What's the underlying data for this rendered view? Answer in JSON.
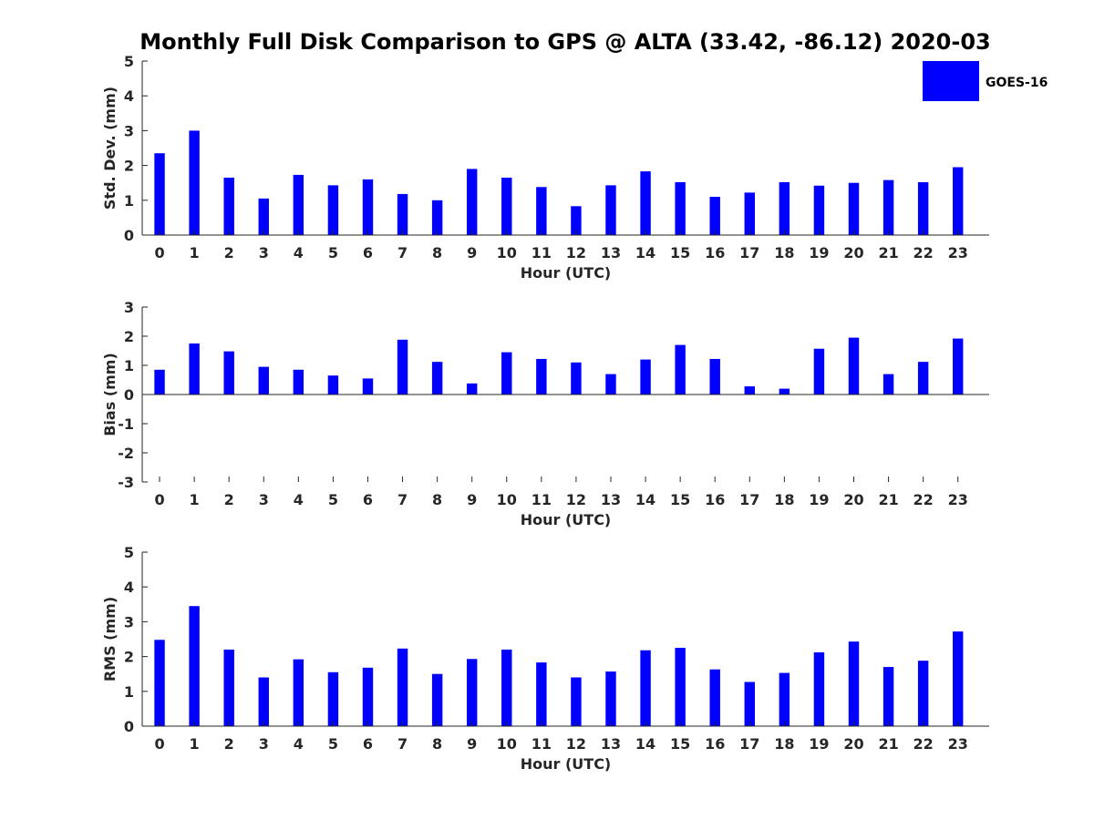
{
  "title": "Monthly Full Disk Comparison to GPS @ ALTA (33.42, -86.12) 2020-03",
  "legend": {
    "label": "GOES-16",
    "color": "#0000ff",
    "placement": "top-right"
  },
  "chart_data": [
    {
      "type": "bar",
      "categories": [
        "0",
        "1",
        "2",
        "3",
        "4",
        "5",
        "6",
        "7",
        "8",
        "9",
        "10",
        "11",
        "12",
        "13",
        "14",
        "15",
        "16",
        "17",
        "18",
        "19",
        "20",
        "21",
        "22",
        "23"
      ],
      "values": [
        2.35,
        3.0,
        1.65,
        1.05,
        1.73,
        1.43,
        1.6,
        1.18,
        1.0,
        1.9,
        1.65,
        1.38,
        0.83,
        1.43,
        1.83,
        1.52,
        1.1,
        1.22,
        1.52,
        1.42,
        1.5,
        1.58,
        1.52,
        1.95
      ],
      "xlabel": "Hour (UTC)",
      "ylabel": "Std. Dev. (mm)",
      "ylim": [
        0,
        5
      ],
      "yticks": [
        "0",
        "1",
        "2",
        "3",
        "4",
        "5"
      ],
      "grid": false
    },
    {
      "type": "bar",
      "categories": [
        "0",
        "1",
        "2",
        "3",
        "4",
        "5",
        "6",
        "7",
        "8",
        "9",
        "10",
        "11",
        "12",
        "13",
        "14",
        "15",
        "16",
        "17",
        "18",
        "19",
        "20",
        "21",
        "22",
        "23"
      ],
      "values": [
        0.85,
        1.75,
        1.48,
        0.95,
        0.85,
        0.65,
        0.55,
        1.88,
        1.12,
        0.38,
        1.45,
        1.22,
        1.1,
        0.7,
        1.2,
        1.7,
        1.22,
        0.28,
        0.2,
        1.57,
        1.95,
        0.7,
        1.12,
        1.92
      ],
      "xlabel": "Hour (UTC)",
      "ylabel": "Bias (mm)",
      "ylim": [
        -3,
        3
      ],
      "yticks": [
        "-3",
        "-2",
        "-1",
        "0",
        "1",
        "2",
        "3"
      ],
      "grid": false
    },
    {
      "type": "bar",
      "categories": [
        "0",
        "1",
        "2",
        "3",
        "4",
        "5",
        "6",
        "7",
        "8",
        "9",
        "10",
        "11",
        "12",
        "13",
        "14",
        "15",
        "16",
        "17",
        "18",
        "19",
        "20",
        "21",
        "22",
        "23"
      ],
      "values": [
        2.48,
        3.45,
        2.2,
        1.4,
        1.92,
        1.55,
        1.68,
        2.23,
        1.5,
        1.93,
        2.2,
        1.83,
        1.4,
        1.57,
        2.18,
        2.25,
        1.63,
        1.27,
        1.53,
        2.12,
        2.43,
        1.7,
        1.88,
        2.72
      ],
      "xlabel": "Hour (UTC)",
      "ylabel": "RMS (mm)",
      "ylim": [
        0,
        5
      ],
      "yticks": [
        "0",
        "1",
        "2",
        "3",
        "4",
        "5"
      ],
      "grid": false
    }
  ]
}
